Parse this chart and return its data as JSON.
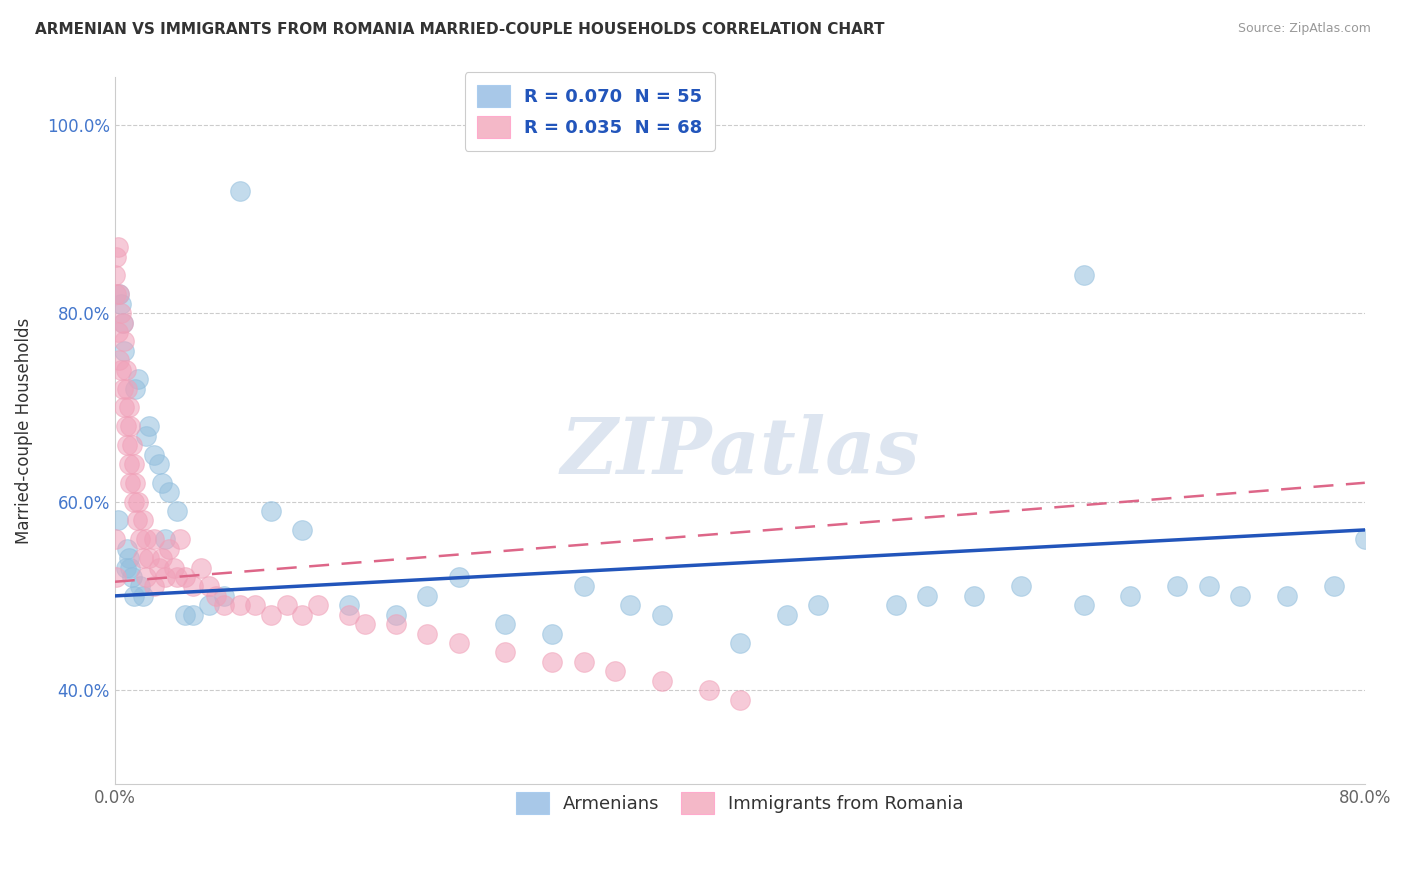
{
  "title": "ARMENIAN VS IMMIGRANTS FROM ROMANIA MARRIED-COUPLE HOUSEHOLDS CORRELATION CHART",
  "source": "Source: ZipAtlas.com",
  "ylabel_label": "Married-couple Households",
  "legend_entries": [
    {
      "label": "R = 0.070  N = 55",
      "color": "#a8c8e8"
    },
    {
      "label": "R = 0.035  N = 68",
      "color": "#f4b8c8"
    }
  ],
  "blue_color": "#92bedd",
  "pink_color": "#f0a0b8",
  "blue_line_color": "#2255bb",
  "pink_line_color": "#dd6688",
  "watermark": "ZIPatlas",
  "xlim": [
    0.0,
    0.8
  ],
  "ylim": [
    0.3,
    1.05
  ],
  "xticks": [
    0.0,
    0.8
  ],
  "xticklabels": [
    "0.0%",
    "80.0%"
  ],
  "yticks": [
    0.4,
    0.6,
    0.8,
    1.0
  ],
  "yticklabels": [
    "40.0%",
    "60.0%",
    "80.0%",
    "100.0%"
  ],
  "grid_color": "#cccccc",
  "blue_line_x": [
    0.0,
    0.8
  ],
  "blue_line_y": [
    0.5,
    0.57
  ],
  "pink_line_x": [
    0.0,
    0.8
  ],
  "pink_line_y": [
    0.515,
    0.62
  ],
  "arm_x": [
    0.002,
    0.003,
    0.004,
    0.005,
    0.006,
    0.007,
    0.008,
    0.009,
    0.01,
    0.011,
    0.012,
    0.013,
    0.015,
    0.016,
    0.018,
    0.02,
    0.022,
    0.025,
    0.028,
    0.03,
    0.032,
    0.035,
    0.04,
    0.045,
    0.05,
    0.06,
    0.07,
    0.08,
    0.1,
    0.12,
    0.15,
    0.18,
    0.2,
    0.22,
    0.25,
    0.28,
    0.3,
    0.33,
    0.35,
    0.4,
    0.43,
    0.45,
    0.5,
    0.52,
    0.55,
    0.58,
    0.62,
    0.65,
    0.68,
    0.7,
    0.72,
    0.75,
    0.78,
    0.8,
    0.62
  ],
  "arm_y": [
    0.58,
    0.82,
    0.81,
    0.79,
    0.76,
    0.53,
    0.55,
    0.54,
    0.53,
    0.52,
    0.5,
    0.72,
    0.73,
    0.51,
    0.5,
    0.67,
    0.68,
    0.65,
    0.64,
    0.62,
    0.56,
    0.61,
    0.59,
    0.48,
    0.48,
    0.49,
    0.5,
    0.93,
    0.59,
    0.57,
    0.49,
    0.48,
    0.5,
    0.52,
    0.47,
    0.46,
    0.51,
    0.49,
    0.48,
    0.45,
    0.48,
    0.49,
    0.49,
    0.5,
    0.5,
    0.51,
    0.49,
    0.5,
    0.51,
    0.51,
    0.5,
    0.5,
    0.51,
    0.56,
    0.84
  ],
  "rom_x": [
    0.0,
    0.001,
    0.001,
    0.002,
    0.002,
    0.003,
    0.003,
    0.004,
    0.004,
    0.005,
    0.005,
    0.006,
    0.006,
    0.007,
    0.007,
    0.008,
    0.008,
    0.009,
    0.009,
    0.01,
    0.01,
    0.011,
    0.012,
    0.012,
    0.013,
    0.014,
    0.015,
    0.016,
    0.018,
    0.018,
    0.02,
    0.02,
    0.022,
    0.025,
    0.025,
    0.028,
    0.03,
    0.032,
    0.035,
    0.038,
    0.04,
    0.042,
    0.045,
    0.05,
    0.055,
    0.06,
    0.065,
    0.07,
    0.08,
    0.09,
    0.1,
    0.11,
    0.12,
    0.13,
    0.15,
    0.16,
    0.18,
    0.2,
    0.22,
    0.25,
    0.28,
    0.3,
    0.32,
    0.35,
    0.38,
    0.4,
    0.0,
    0.001
  ],
  "rom_y": [
    0.84,
    0.86,
    0.82,
    0.87,
    0.78,
    0.82,
    0.75,
    0.8,
    0.74,
    0.79,
    0.72,
    0.77,
    0.7,
    0.74,
    0.68,
    0.72,
    0.66,
    0.7,
    0.64,
    0.68,
    0.62,
    0.66,
    0.64,
    0.6,
    0.62,
    0.58,
    0.6,
    0.56,
    0.58,
    0.54,
    0.56,
    0.52,
    0.54,
    0.56,
    0.51,
    0.53,
    0.54,
    0.52,
    0.55,
    0.53,
    0.52,
    0.56,
    0.52,
    0.51,
    0.53,
    0.51,
    0.5,
    0.49,
    0.49,
    0.49,
    0.48,
    0.49,
    0.48,
    0.49,
    0.48,
    0.47,
    0.47,
    0.46,
    0.45,
    0.44,
    0.43,
    0.43,
    0.42,
    0.41,
    0.4,
    0.39,
    0.56,
    0.52
  ]
}
